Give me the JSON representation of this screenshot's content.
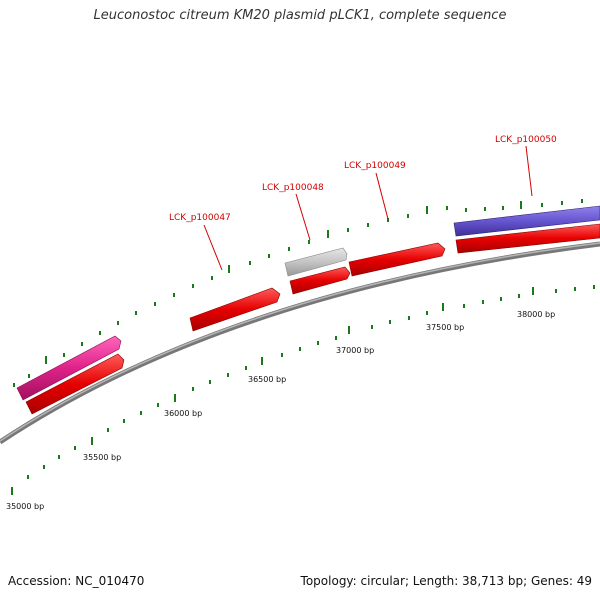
{
  "title": "Leuconostoc citreum KM20 plasmid pLCK1, complete sequence",
  "footer": {
    "accession": "Accession: NC_010470",
    "summary": "Topology: circular; Length: 38,713 bp; Genes: 49"
  },
  "colors": {
    "backbone": "#8c8c8c",
    "cds": "#e60000",
    "tick": "#1a7a1a",
    "label": "#d40000",
    "pink_feature": "#e0228a",
    "gray_feature": "#c4c4c4",
    "blue_feature": "#6655d0"
  },
  "diagram": {
    "scale_labels": [
      "35000 bp",
      "35500 bp",
      "36000 bp",
      "36500 bp",
      "37000 bp",
      "37500 bp",
      "38000 bp"
    ],
    "gene_labels": [
      "LCK_p100047",
      "LCK_p100048",
      "LCK_p100049",
      "LCK_p100050"
    ]
  }
}
